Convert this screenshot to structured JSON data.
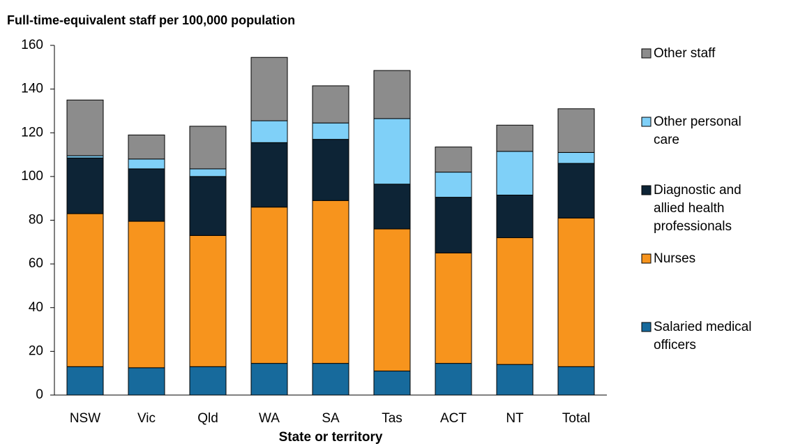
{
  "chart_data": {
    "type": "stacked_bar",
    "title": "Full-time-equivalent staff  per 100,000  population",
    "x_label": "State or territory",
    "categories": [
      "NSW",
      "Vic",
      "Qld",
      "WA",
      "SA",
      "Tas",
      "ACT",
      "NT",
      "Total"
    ],
    "series": [
      {
        "name": "Salaried medical officers",
        "color": "#176a9c",
        "values": [
          13,
          12.5,
          13,
          14.5,
          14.5,
          11,
          14.5,
          14,
          13
        ]
      },
      {
        "name": "Nurses",
        "color": "#f7941d",
        "values": [
          70,
          67,
          60,
          71.5,
          74.5,
          65,
          50.5,
          58,
          68
        ]
      },
      {
        "name": "Diagnostic and allied health professionals",
        "color": "#0d2436",
        "values": [
          25.5,
          24,
          27,
          29.5,
          28,
          20.5,
          25.5,
          19.5,
          25
        ]
      },
      {
        "name": "Other personal care",
        "color": "#7fd0f8",
        "values": [
          1,
          4.5,
          3.5,
          10,
          7.5,
          30,
          11.5,
          20,
          5
        ]
      },
      {
        "name": "Other staff",
        "color": "#8c8c8c",
        "values": [
          25.5,
          11,
          19.5,
          29,
          17,
          22,
          11.5,
          12,
          20
        ]
      }
    ],
    "ylim": [
      0,
      160
    ],
    "yticks": [
      0,
      20,
      40,
      60,
      80,
      100,
      120,
      140,
      160
    ]
  }
}
